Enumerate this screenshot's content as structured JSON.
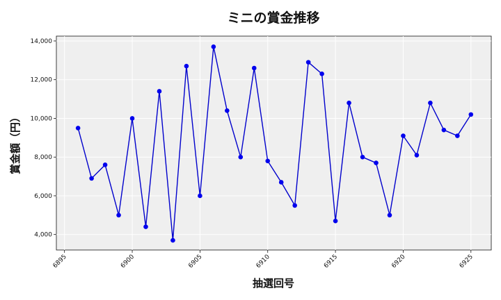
{
  "chart_data": {
    "type": "line",
    "title": "ミニの賞金推移",
    "xlabel": "抽選回号",
    "ylabel": "賞金額（円）",
    "xlim": [
      6894.4,
      6926.5
    ],
    "ylim": [
      3200,
      14250
    ],
    "x_ticks": [
      6895,
      6900,
      6905,
      6910,
      6915,
      6920,
      6925
    ],
    "x_tick_labels": [
      "6895",
      "6900",
      "6905",
      "6910",
      "6915",
      "6920",
      "6925"
    ],
    "y_ticks": [
      4000,
      6000,
      8000,
      10000,
      12000,
      14000
    ],
    "y_tick_labels": [
      "4,000",
      "6,000",
      "8,000",
      "10,000",
      "12,000",
      "14,000"
    ],
    "grid": true,
    "legend": false,
    "line_color": "#0000cc",
    "marker_color": "#0000ee",
    "plot_background": "#efefef",
    "series": [
      {
        "x": [
          6896,
          6897,
          6898,
          6899,
          6900,
          6901,
          6902,
          6903,
          6904,
          6905,
          6906,
          6907,
          6908,
          6909,
          6910,
          6911,
          6912,
          6913,
          6914,
          6915,
          6916,
          6917,
          6918,
          6919,
          6920,
          6921,
          6922,
          6923,
          6924,
          6925
        ],
        "values": [
          9500,
          6900,
          7600,
          5000,
          10000,
          4400,
          11400,
          3700,
          12700,
          6000,
          13700,
          10400,
          8000,
          12600,
          7800,
          6700,
          5500,
          12900,
          12300,
          4700,
          10800,
          8000,
          7700,
          5000,
          9100,
          8100,
          10800,
          9400,
          9100,
          10200
        ]
      }
    ]
  }
}
